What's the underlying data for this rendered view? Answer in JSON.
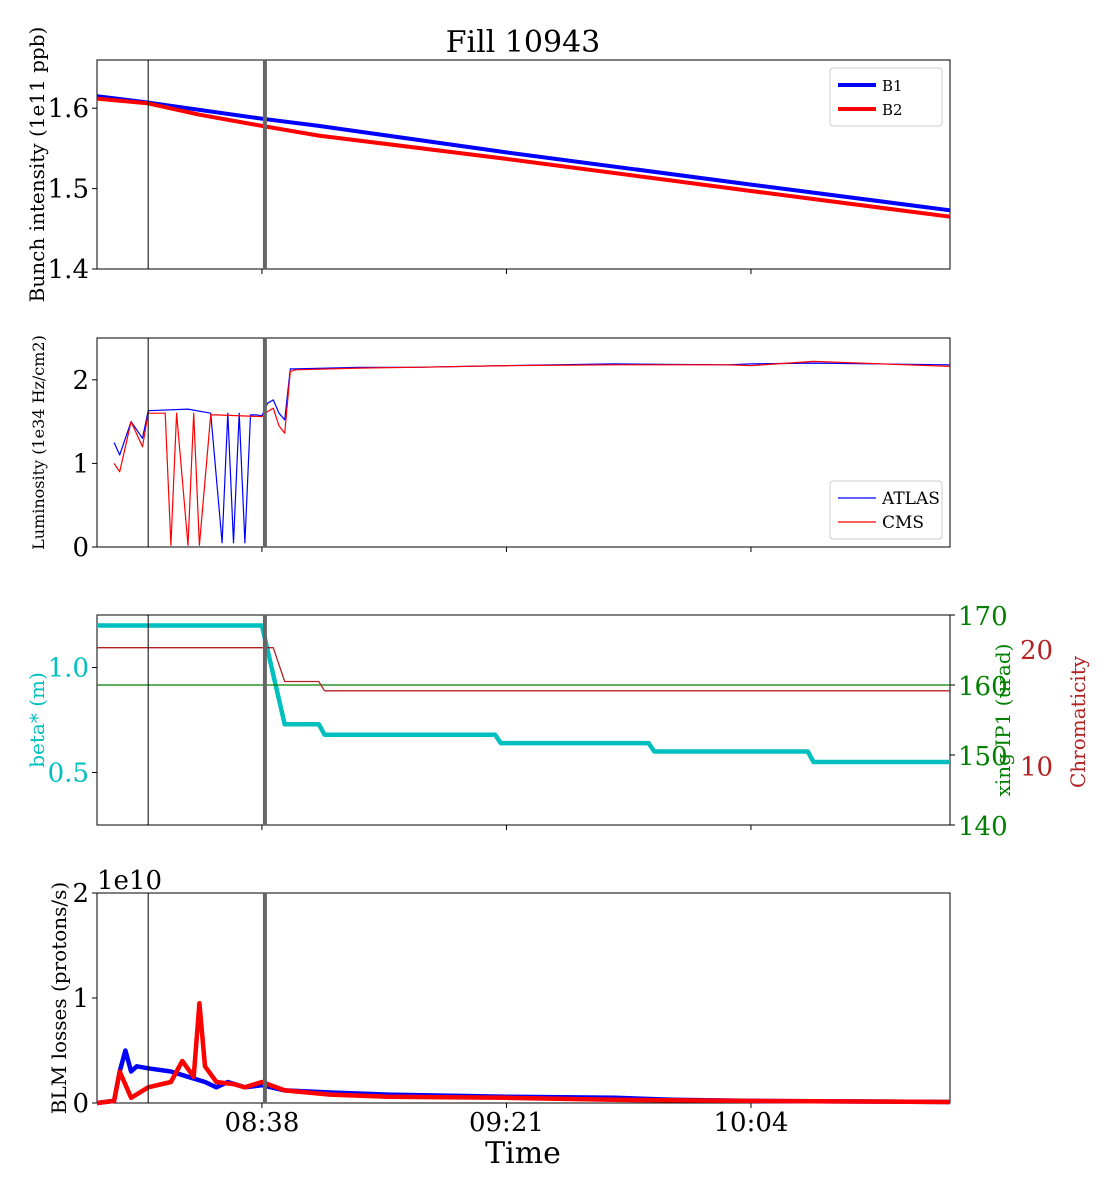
{
  "figure": {
    "title": "Fill 10943",
    "xlabel": "Time"
  },
  "x_ticks": [
    "08:38",
    "09:21",
    "10:04"
  ],
  "markers": {
    "thin_line_time": "08:18",
    "thick_line_time": "08:38"
  },
  "colors": {
    "b1": "#0000ff",
    "b2": "#ff0000",
    "beta": "#00bfbf",
    "xing": "#008000",
    "chroma": "#b22222",
    "marker": "#666666"
  },
  "chart_data": [
    {
      "type": "line",
      "ylabel": "Bunch intensity (1e11 ppb)",
      "ylim": [
        1.4,
        1.66
      ],
      "yticks": [
        "1.4",
        "1.5",
        "1.6"
      ],
      "legend": "top-right",
      "series": [
        {
          "name": "B1",
          "x": [
            "08:09",
            "08:18",
            "08:38",
            "08:48",
            "09:21",
            "10:04",
            "10:39"
          ],
          "values": [
            1.615,
            1.607,
            1.587,
            1.578,
            1.545,
            1.505,
            1.473
          ]
        },
        {
          "name": "B2",
          "x": [
            "08:09",
            "08:18",
            "08:27",
            "08:38",
            "08:48",
            "09:21",
            "10:04",
            "10:39"
          ],
          "values": [
            1.612,
            1.606,
            1.592,
            1.578,
            1.566,
            1.537,
            1.497,
            1.465
          ]
        }
      ]
    },
    {
      "type": "line",
      "ylabel": "Luminosity (1e34 Hz/cm2)",
      "ylim": [
        0,
        2.5
      ],
      "yticks": [
        "0",
        "1",
        "2"
      ],
      "legend": "bottom-right",
      "series": [
        {
          "name": "ATLAS",
          "x": [
            "08:12",
            "08:13",
            "08:15",
            "08:17",
            "08:18",
            "08:25",
            "08:29",
            "08:31",
            "08:32",
            "08:33",
            "08:34",
            "08:35",
            "08:36",
            "08:37",
            "08:38",
            "08:39",
            "08:40",
            "08:41",
            "08:42",
            "08:43",
            "08:44",
            "08:55",
            "09:05",
            "09:21",
            "09:40",
            "10:00",
            "10:04",
            "10:15",
            "10:39"
          ],
          "values": [
            1.25,
            1.1,
            1.5,
            1.3,
            1.63,
            1.65,
            1.6,
            0.05,
            1.6,
            0.05,
            1.6,
            0.05,
            1.58,
            1.58,
            1.57,
            1.72,
            1.76,
            1.6,
            1.52,
            2.13,
            2.13,
            2.15,
            2.15,
            2.17,
            2.19,
            2.18,
            2.19,
            2.2,
            2.18
          ]
        },
        {
          "name": "CMS",
          "x": [
            "08:12",
            "08:13",
            "08:15",
            "08:17",
            "08:18",
            "08:21",
            "08:22",
            "08:23",
            "08:25",
            "08:26",
            "08:27",
            "08:29",
            "08:30",
            "08:38",
            "08:39",
            "08:40",
            "08:41",
            "08:42",
            "08:43",
            "08:44",
            "08:55",
            "09:05",
            "09:21",
            "09:40",
            "10:00",
            "10:04",
            "10:15",
            "10:39"
          ],
          "values": [
            1.0,
            0.9,
            1.5,
            1.2,
            1.6,
            1.6,
            0.02,
            1.6,
            0.02,
            1.6,
            0.02,
            1.58,
            1.58,
            1.56,
            1.62,
            1.66,
            1.45,
            1.36,
            2.1,
            2.12,
            2.14,
            2.15,
            2.17,
            2.18,
            2.18,
            2.17,
            2.22,
            2.16
          ]
        }
      ]
    },
    {
      "type": "line",
      "ylabel": "beta* (m)",
      "ylabel_right": "xing IP1 (urad)",
      "ylabel_right2": "Chromaticity",
      "ylim": [
        0.25,
        1.25
      ],
      "yticks": [
        "0.5",
        "1.0"
      ],
      "ylim_right": [
        140,
        170
      ],
      "yticks_right": [
        "140",
        "150",
        "160",
        "170"
      ],
      "ylim_right2": [
        5,
        23
      ],
      "yticks_right2": [
        "10",
        "20"
      ],
      "series": [
        {
          "name": "beta*",
          "axis": "left",
          "x": [
            "08:09",
            "08:38",
            "08:42",
            "08:48",
            "08:49",
            "09:19",
            "09:20",
            "09:46",
            "09:47",
            "10:14",
            "10:15",
            "10:39"
          ],
          "values": [
            1.2,
            1.2,
            0.73,
            0.73,
            0.68,
            0.68,
            0.64,
            0.64,
            0.6,
            0.6,
            0.55,
            0.55
          ]
        },
        {
          "name": "xing IP1",
          "axis": "right",
          "x": [
            "08:09",
            "10:39"
          ],
          "values": [
            160,
            160
          ]
        },
        {
          "name": "Chromaticity",
          "axis": "right2",
          "x": [
            "08:09",
            "08:38",
            "08:40",
            "08:42",
            "08:48",
            "08:49",
            "10:39"
          ],
          "values": [
            20.2,
            20.2,
            20.2,
            17.3,
            17.3,
            16.5,
            16.5
          ]
        }
      ]
    },
    {
      "type": "line",
      "ylabel": "BLM losses (protons/s)",
      "yscale_label": "1e10",
      "ylim": [
        0,
        2
      ],
      "yticks": [
        "0",
        "1",
        "2"
      ],
      "series": [
        {
          "name": "B1",
          "x": [
            "08:09",
            "08:12",
            "08:13",
            "08:14",
            "08:15",
            "08:16",
            "08:18",
            "08:22",
            "08:25",
            "08:28",
            "08:30",
            "08:32",
            "08:35",
            "08:38",
            "08:42",
            "08:50",
            "09:00",
            "09:21",
            "09:40",
            "09:50",
            "10:04",
            "10:39"
          ],
          "values": [
            0,
            0.02,
            0.3,
            0.5,
            0.3,
            0.35,
            0.33,
            0.3,
            0.25,
            0.2,
            0.15,
            0.2,
            0.15,
            0.17,
            0.12,
            0.1,
            0.08,
            0.06,
            0.05,
            0.03,
            0.02,
            0.01
          ]
        },
        {
          "name": "B2",
          "x": [
            "08:09",
            "08:12",
            "08:13",
            "08:15",
            "08:18",
            "08:22",
            "08:24",
            "08:26",
            "08:27",
            "08:28",
            "08:30",
            "08:33",
            "08:35",
            "08:38",
            "08:42",
            "08:50",
            "09:00",
            "09:21",
            "09:40",
            "10:04",
            "10:39"
          ],
          "values": [
            0,
            0.02,
            0.3,
            0.05,
            0.15,
            0.2,
            0.4,
            0.25,
            0.95,
            0.35,
            0.2,
            0.18,
            0.15,
            0.2,
            0.12,
            0.08,
            0.06,
            0.05,
            0.03,
            0.02,
            0.01
          ]
        }
      ]
    }
  ]
}
